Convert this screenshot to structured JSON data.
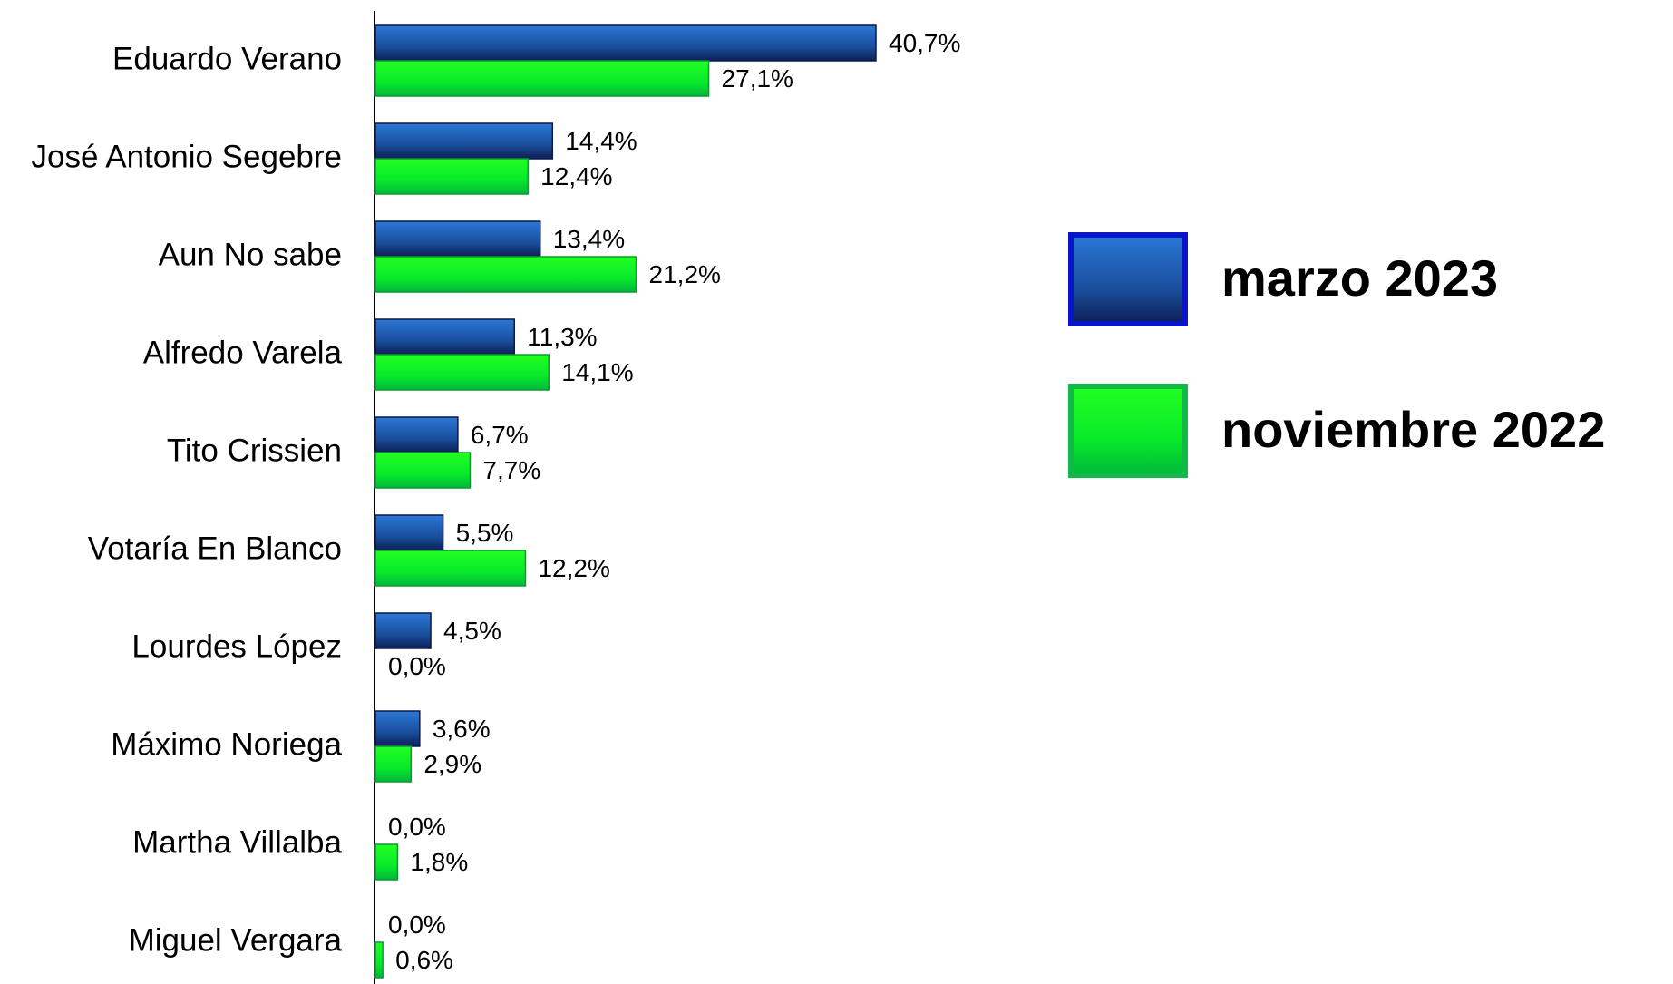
{
  "chart_data": {
    "type": "bar",
    "orientation": "horizontal",
    "categories": [
      "Eduardo Verano",
      "José Antonio Segebre",
      "Aun No sabe",
      "Alfredo Varela",
      "Tito Crissien",
      "Votaría En Blanco",
      "Lourdes López",
      "Máximo Noriega",
      "Martha Villalba",
      "Miguel Vergara"
    ],
    "series": [
      {
        "name": "marzo 2023",
        "color": "#1f5fb4",
        "values": [
          40.7,
          14.4,
          13.4,
          11.3,
          6.7,
          5.5,
          4.5,
          3.6,
          0.0,
          0.0
        ],
        "value_labels": [
          "40,7%",
          "14,4%",
          "13,4%",
          "11,3%",
          "6,7%",
          "5,5%",
          "4,5%",
          "3,6%",
          "0,0%",
          "0,0%"
        ]
      },
      {
        "name": "noviembre 2022",
        "color": "#00e82a",
        "values": [
          27.1,
          12.4,
          21.2,
          14.1,
          7.7,
          12.2,
          0.0,
          2.9,
          1.8,
          0.6
        ],
        "value_labels": [
          "27,1%",
          "12,4%",
          "21,2%",
          "14,1%",
          "7,7%",
          "12,2%",
          "0,0%",
          "2,9%",
          "1,8%",
          "0,6%"
        ]
      }
    ],
    "legend": "right"
  }
}
